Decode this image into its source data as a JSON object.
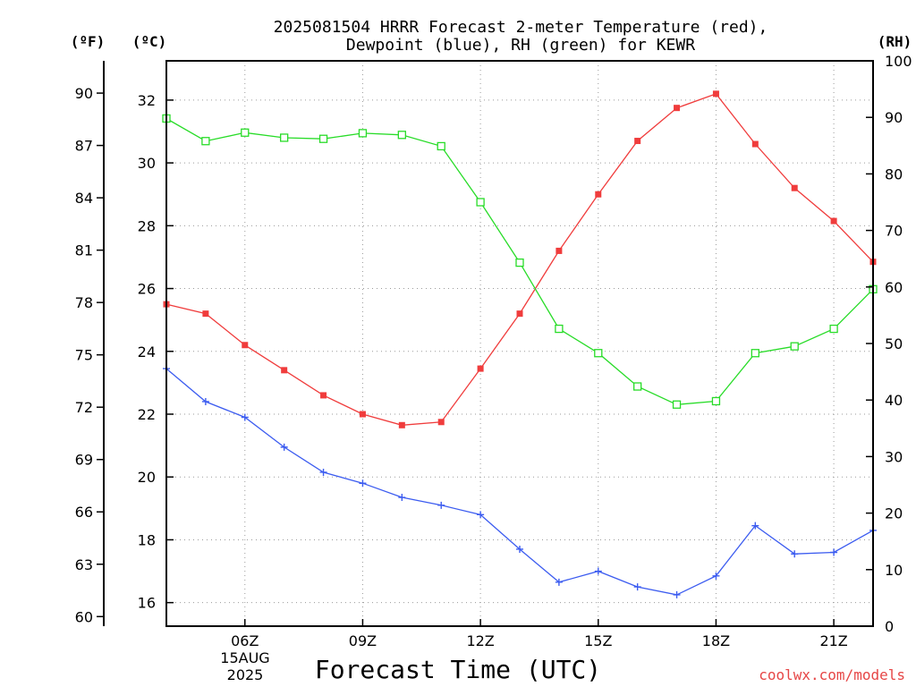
{
  "chart_data": {
    "type": "line",
    "title_line1": "2025081504 HRRR Forecast 2-meter Temperature (red),",
    "title_line2": "Dewpoint (blue), RH (green) for KEWR",
    "xlabel": "Forecast Time (UTC)",
    "credit": "coolwx.com/models",
    "date_label": [
      "15AUG",
      "2025"
    ],
    "units": {
      "fahrenheit": "(ºF)",
      "celsius": "(ºC)",
      "rh": "(RH)"
    },
    "x_hours": [
      4,
      5,
      6,
      7,
      8,
      9,
      10,
      11,
      12,
      13,
      14,
      15,
      16,
      17,
      18,
      19,
      20,
      21,
      22
    ],
    "xlim": [
      4,
      22
    ],
    "x_ticks": [
      {
        "hour": 6,
        "label": "06Z"
      },
      {
        "hour": 9,
        "label": "09Z"
      },
      {
        "hour": 12,
        "label": "12Z"
      },
      {
        "hour": 15,
        "label": "15Z"
      },
      {
        "hour": 18,
        "label": "18Z"
      },
      {
        "hour": 21,
        "label": "21Z"
      }
    ],
    "celsius_axis": {
      "ylim": [
        15.25,
        33.25
      ],
      "ticks": [
        16,
        18,
        20,
        22,
        24,
        26,
        28,
        30,
        32
      ]
    },
    "fahrenheit_axis": {
      "ticks": [
        60,
        63,
        66,
        69,
        72,
        75,
        78,
        81,
        84,
        87,
        90
      ]
    },
    "rh_axis": {
      "ylim": [
        0,
        100
      ],
      "ticks": [
        0,
        10,
        20,
        30,
        40,
        50,
        60,
        70,
        80,
        90,
        100
      ]
    },
    "series": [
      {
        "color": "#f03c3c",
        "marker": "filled-square",
        "axis": "celsius",
        "values": [
          25.5,
          25.2,
          24.2,
          23.4,
          22.6,
          22.0,
          21.65,
          21.75,
          23.45,
          25.2,
          27.2,
          29.0,
          30.7,
          31.75,
          32.2,
          30.6,
          29.2,
          28.15,
          26.85
        ]
      },
      {
        "color": "#3c5cf0",
        "marker": "plus",
        "axis": "celsius",
        "values": [
          23.45,
          22.4,
          21.9,
          20.95,
          20.15,
          19.8,
          19.35,
          19.1,
          18.8,
          17.7,
          16.65,
          17.0,
          16.5,
          16.25,
          16.85,
          18.45,
          17.55,
          17.6,
          18.3
        ]
      },
      {
        "color": "#28dc28",
        "marker": "open-square",
        "axis": "rh",
        "values": [
          89.8,
          85.8,
          87.3,
          86.4,
          86.2,
          87.2,
          86.9,
          84.9,
          75.0,
          64.3,
          52.6,
          48.3,
          42.4,
          39.2,
          39.8,
          48.3,
          49.5,
          52.6,
          59.6
        ]
      }
    ]
  }
}
